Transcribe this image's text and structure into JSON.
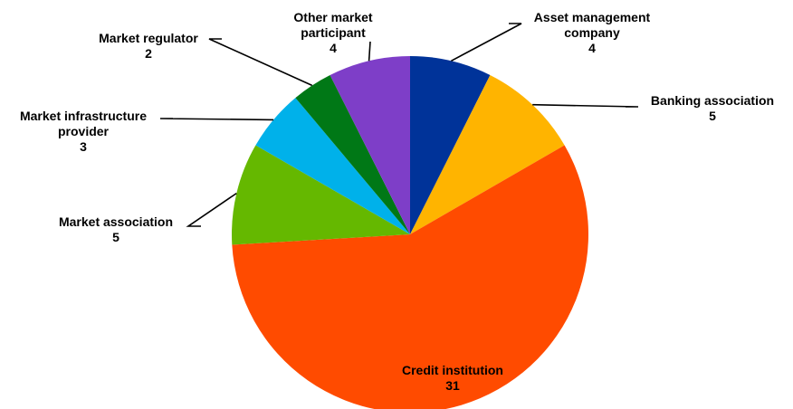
{
  "chart_data": {
    "type": "pie",
    "slices": [
      {
        "label": [
          "Asset management",
          "company"
        ],
        "value": 4,
        "color": "#003399"
      },
      {
        "label": [
          "Banking association"
        ],
        "value": 5,
        "color": "#FFB400"
      },
      {
        "label": [
          "Credit institution"
        ],
        "value": 31,
        "color": "#FF4B00"
      },
      {
        "label": [
          "Market association"
        ],
        "value": 5,
        "color": "#65B800"
      },
      {
        "label": [
          "Market infrastructure",
          "provider"
        ],
        "value": 3,
        "color": "#00B1EA"
      },
      {
        "label": [
          "Market regulator"
        ],
        "value": 2,
        "color": "#007816"
      },
      {
        "label": [
          "Other market",
          "participant"
        ],
        "value": 4,
        "color": "#7E3EC8"
      }
    ],
    "start_angle": "12 o'clock",
    "direction": "clockwise",
    "legend": "none"
  }
}
